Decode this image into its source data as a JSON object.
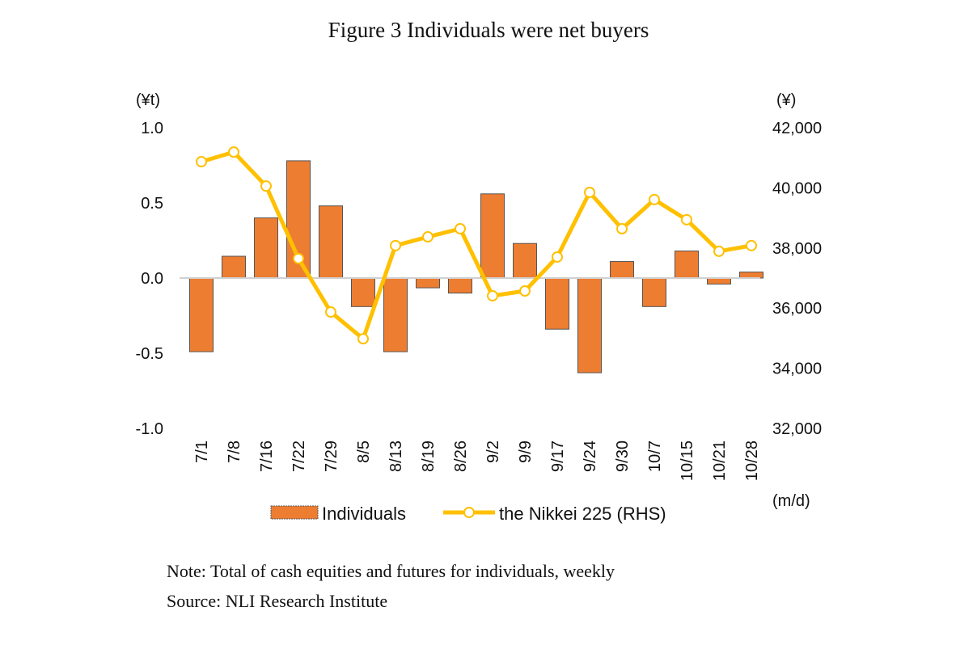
{
  "title": "Figure 3 Individuals were net buyers",
  "notes": {
    "note": "Note: Total of cash equities and futures for individuals, weekly",
    "source": "Source: NLI Research Institute"
  },
  "chart_data": {
    "type": "bar+line",
    "categories": [
      "7/1",
      "7/8",
      "7/16",
      "7/22",
      "7/29",
      "8/5",
      "8/13",
      "8/19",
      "8/26",
      "9/2",
      "9/9",
      "9/17",
      "9/24",
      "9/30",
      "10/7",
      "10/15",
      "10/21",
      "10/28"
    ],
    "xlabel": "(m/d)",
    "ylabel_left": "(¥t)",
    "ylabel_right": "(¥)",
    "ylim_left": [
      -1.0,
      1.0
    ],
    "ylim_right": [
      32000,
      42000
    ],
    "yticks_left": [
      "1.0",
      "0.5",
      "0.0",
      "-0.5",
      "-1.0"
    ],
    "yticks_right": [
      "42,000",
      "40,000",
      "38,000",
      "36,000",
      "34,000",
      "32,000"
    ],
    "series": [
      {
        "name": "Individuals",
        "type": "bar",
        "axis": "left",
        "color": "#ed7d31",
        "values": [
          -0.49,
          0.145,
          0.4,
          0.78,
          0.48,
          -0.19,
          -0.49,
          -0.065,
          -0.1,
          0.56,
          0.23,
          -0.34,
          -0.63,
          0.11,
          -0.19,
          0.18,
          -0.04,
          0.04
        ]
      },
      {
        "name": "the Nikkei 225 (RHS)",
        "type": "line",
        "axis": "right",
        "color": "#ffc000",
        "values": [
          40870,
          41190,
          40060,
          37650,
          35870,
          34980,
          38080,
          38370,
          38640,
          36410,
          36570,
          37700,
          39850,
          38640,
          39610,
          38940,
          37890,
          38080
        ]
      }
    ],
    "legend": "bottom",
    "grid": false
  }
}
